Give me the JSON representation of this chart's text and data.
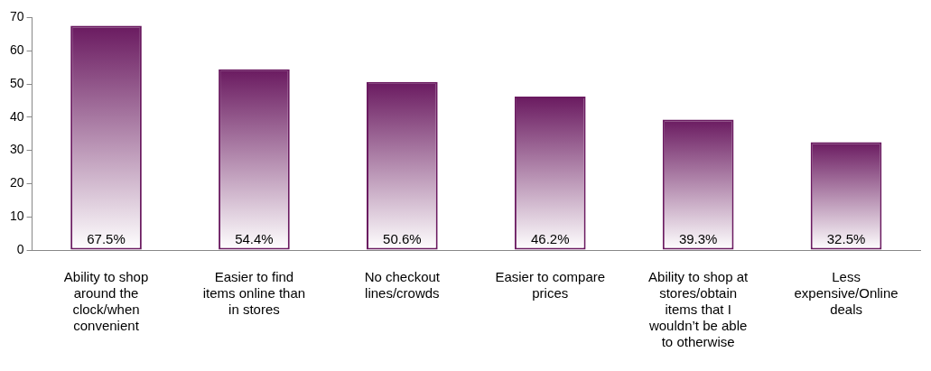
{
  "chart_data": {
    "type": "bar",
    "categories": [
      "Ability to shop around the clock/when convenient",
      "Easier to find items online than in stores",
      "No checkout lines/crowds",
      "Easier to compare prices",
      "Ability to shop at stores/obtain items that I wouldn’t be able to otherwise",
      "Less expensive/Online deals"
    ],
    "values": [
      67.5,
      54.4,
      50.6,
      46.2,
      39.3,
      32.5
    ],
    "value_labels": [
      "67.5%",
      "54.4%",
      "50.6%",
      "46.2%",
      "39.3%",
      "32.5%"
    ],
    "color": "#6a1a60",
    "ylim": [
      0,
      70
    ],
    "yticks": [
      0,
      10,
      20,
      30,
      40,
      50,
      60,
      70
    ],
    "grid": false,
    "legend": false
  }
}
